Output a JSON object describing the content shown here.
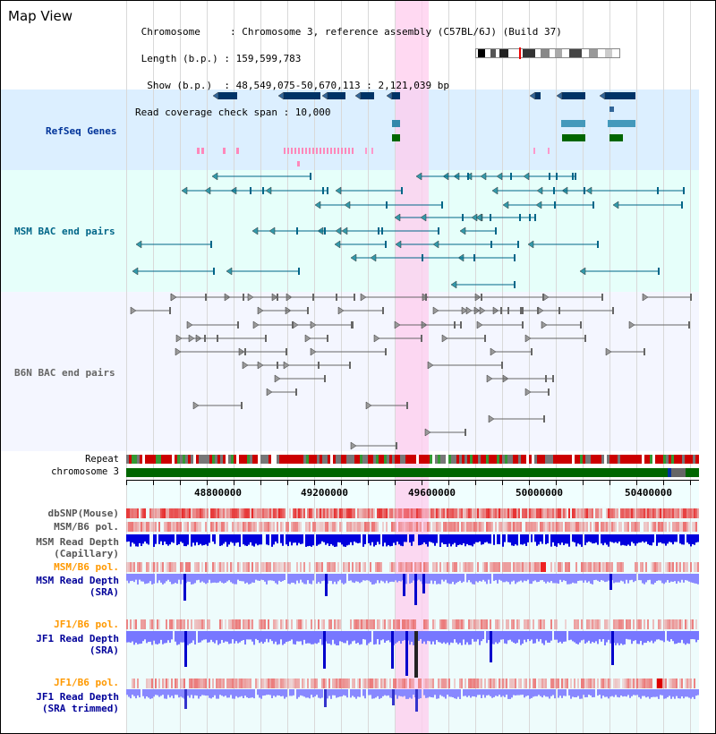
{
  "header": {
    "title": "Map View",
    "info_lines": [
      " Chromosome     : Chromosome 3, reference assembly (C57BL/6J) (Build 37)",
      " Length (b.p.) : 159,599,783",
      "  Show (b.p.)  : 48,549,075-50,670,113 : 2,121,039 bp",
      "Read coverage check span : 10,000"
    ]
  },
  "tracks": {
    "refseq": {
      "label": "RefSeq Genes",
      "color": "#003399"
    },
    "msm_bac": {
      "label": "MSM BAC end pairs",
      "color": "#006688"
    },
    "b6n_bac": {
      "label": "B6N BAC end pairs",
      "color": "#555555"
    }
  },
  "strips": {
    "repeat": "Repeat",
    "chromosome": "chromosome 3"
  },
  "axis": {
    "ticks": [
      "48800000",
      "49200000",
      "49600000",
      "50000000",
      "50400000"
    ]
  },
  "readtracks": {
    "dbsnp": "dbSNP(Mouse)",
    "msm_b6_pol_cap": "MSM/B6 pol.",
    "msm_depth_cap_1": "MSM Read Depth",
    "msm_depth_cap_2": "(Capillary)",
    "msm_b6_pol_sra": "MSM/B6 pol.",
    "msm_depth_sra_1": "MSM Read Depth",
    "msm_depth_sra_2": "(SRA)",
    "jf1_pol": "JF1/B6 pol.",
    "jf1_depth_1": "JF1 Read Depth",
    "jf1_depth_2": "(SRA)",
    "jf1_pol_trim": "JF1/B6 pol.",
    "jf1_trim_1": "JF1 Read Depth",
    "jf1_trim_2": "(SRA trimmed)"
  },
  "colors": {
    "refseq_bg": "#dcefff",
    "msm_bg": "#e6fffa",
    "b6n_bg": "#f4f6ff",
    "highlight": "#ffccee",
    "orange_label": "#ff9900",
    "blue_label": "#000099",
    "depth_dark": "#0000dd",
    "depth_light": "#8888ff"
  }
}
